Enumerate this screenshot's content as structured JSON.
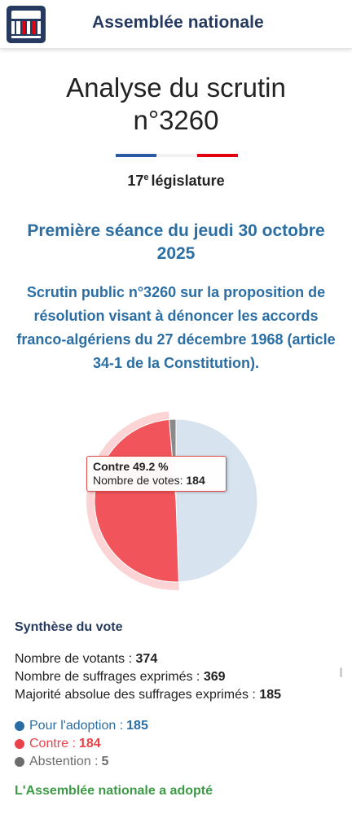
{
  "header": {
    "site_title": "Assemblée nationale",
    "logo_icon": "assemblee-logo-icon"
  },
  "page": {
    "title_line1": "Analyse du scrutin",
    "title_line2": "n°3260",
    "legislature_num": "17",
    "legislature_sup": "e",
    "legislature_word": "législature",
    "tricolor": [
      "#2b5aa3",
      "#ffffff",
      "#e1000f"
    ]
  },
  "scrutin": {
    "seance": "Première séance du jeudi 30 octobre 2025",
    "description": "Scrutin public n°3260 sur la proposition de résolution visant à dénoncer les accords franco-algériens du 27 décembre 1968 (article 34-1 de la Constitution)."
  },
  "chart_data": {
    "type": "pie",
    "title": "",
    "series": [
      {
        "name": "Pour l'adoption",
        "value": 185,
        "color": "#d7e3ef"
      },
      {
        "name": "Contre",
        "value": 184,
        "color": "#f2545b"
      },
      {
        "name": "Abstention",
        "value": 5,
        "color": "#8a8a8a"
      }
    ],
    "highlighted": "Contre",
    "tooltip": {
      "label": "Contre 49.2 %",
      "count_label": "Nombre de votes:",
      "count_value": "184"
    }
  },
  "synthese": {
    "title": "Synthèse du vote",
    "votants_label": "Nombre de votants :",
    "votants_value": "374",
    "exprimes_label": "Nombre de suffrages exprimés :",
    "exprimes_value": "369",
    "majorite_label": "Majorité absolue des suffrages exprimés :",
    "majorite_value": "185"
  },
  "votes": [
    {
      "label": "Pour l'adoption :",
      "value": "185",
      "color": "#2b6ea3"
    },
    {
      "label": "Contre :",
      "value": "184",
      "color": "#e8424a"
    },
    {
      "label": "Abstention :",
      "value": "5",
      "color": "#6d6d6d"
    }
  ],
  "result": "L'Assemblée nationale a adopté",
  "colors": {
    "accent_blue": "#2b6ea3",
    "navy": "#253a5e",
    "green": "#3c9a46"
  }
}
